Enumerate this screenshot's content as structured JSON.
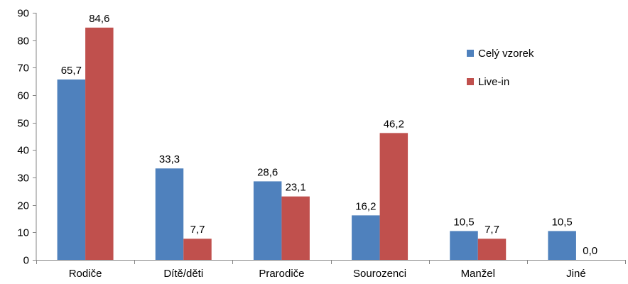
{
  "chart_data": {
    "type": "bar",
    "categories": [
      "Rodiče",
      "Dítě/děti",
      "Prarodiče",
      "Sourozenci",
      "Manžel",
      "Jiné"
    ],
    "series": [
      {
        "name": "Celý vzorek",
        "color": "#4F81BD",
        "values": [
          65.7,
          33.3,
          28.6,
          16.2,
          10.5,
          10.5
        ],
        "labels": [
          "65,7",
          "33,3",
          "28,6",
          "16,2",
          "10,5",
          "10,5"
        ]
      },
      {
        "name": "Live-in",
        "color": "#C0504D",
        "values": [
          84.6,
          7.7,
          23.1,
          46.2,
          7.7,
          0.0
        ],
        "labels": [
          "84,6",
          "7,7",
          "23,1",
          "46,2",
          "7,7",
          "0,0"
        ]
      }
    ],
    "ylim": [
      0,
      90
    ],
    "yticks": [
      0,
      10,
      20,
      30,
      40,
      50,
      60,
      70,
      80,
      90
    ],
    "grid": false,
    "legend": "right"
  }
}
